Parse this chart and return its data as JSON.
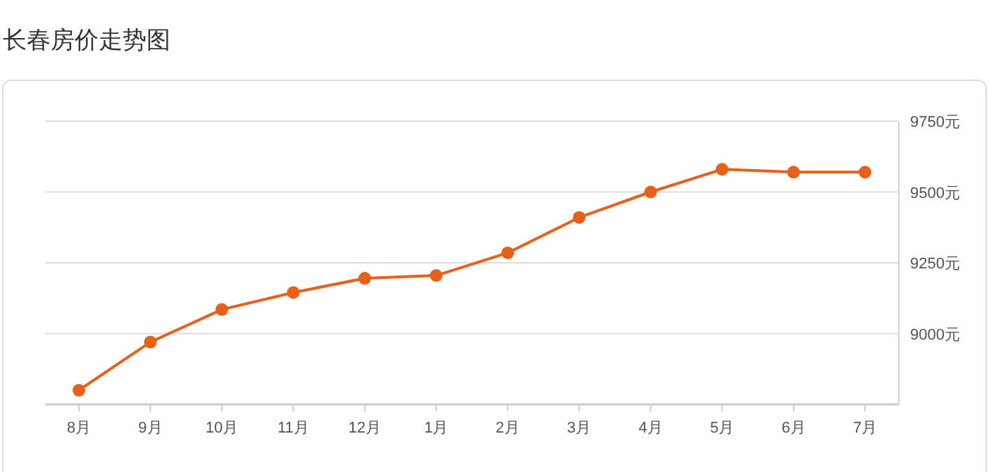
{
  "chart_data": {
    "type": "line",
    "title": "长春房价走势图",
    "categories": [
      "8月",
      "9月",
      "10月",
      "11月",
      "12月",
      "1月",
      "2月",
      "3月",
      "4月",
      "5月",
      "6月",
      "7月"
    ],
    "series": [
      {
        "color": "#e8601a",
        "values": [
          8800,
          8970,
          9085,
          9145,
          9195,
          9205,
          9285,
          9410,
          9500,
          9580,
          9570,
          9570
        ]
      }
    ],
    "ylim": [
      8750,
      9750
    ],
    "yticks": [
      {
        "value": 9000,
        "label": "9000元"
      },
      {
        "value": 9250,
        "label": "9250元"
      },
      {
        "value": 9500,
        "label": "9500元"
      },
      {
        "value": 9750,
        "label": "9750元"
      }
    ],
    "grid": "y",
    "marker": "circle",
    "line_style": "solid"
  }
}
